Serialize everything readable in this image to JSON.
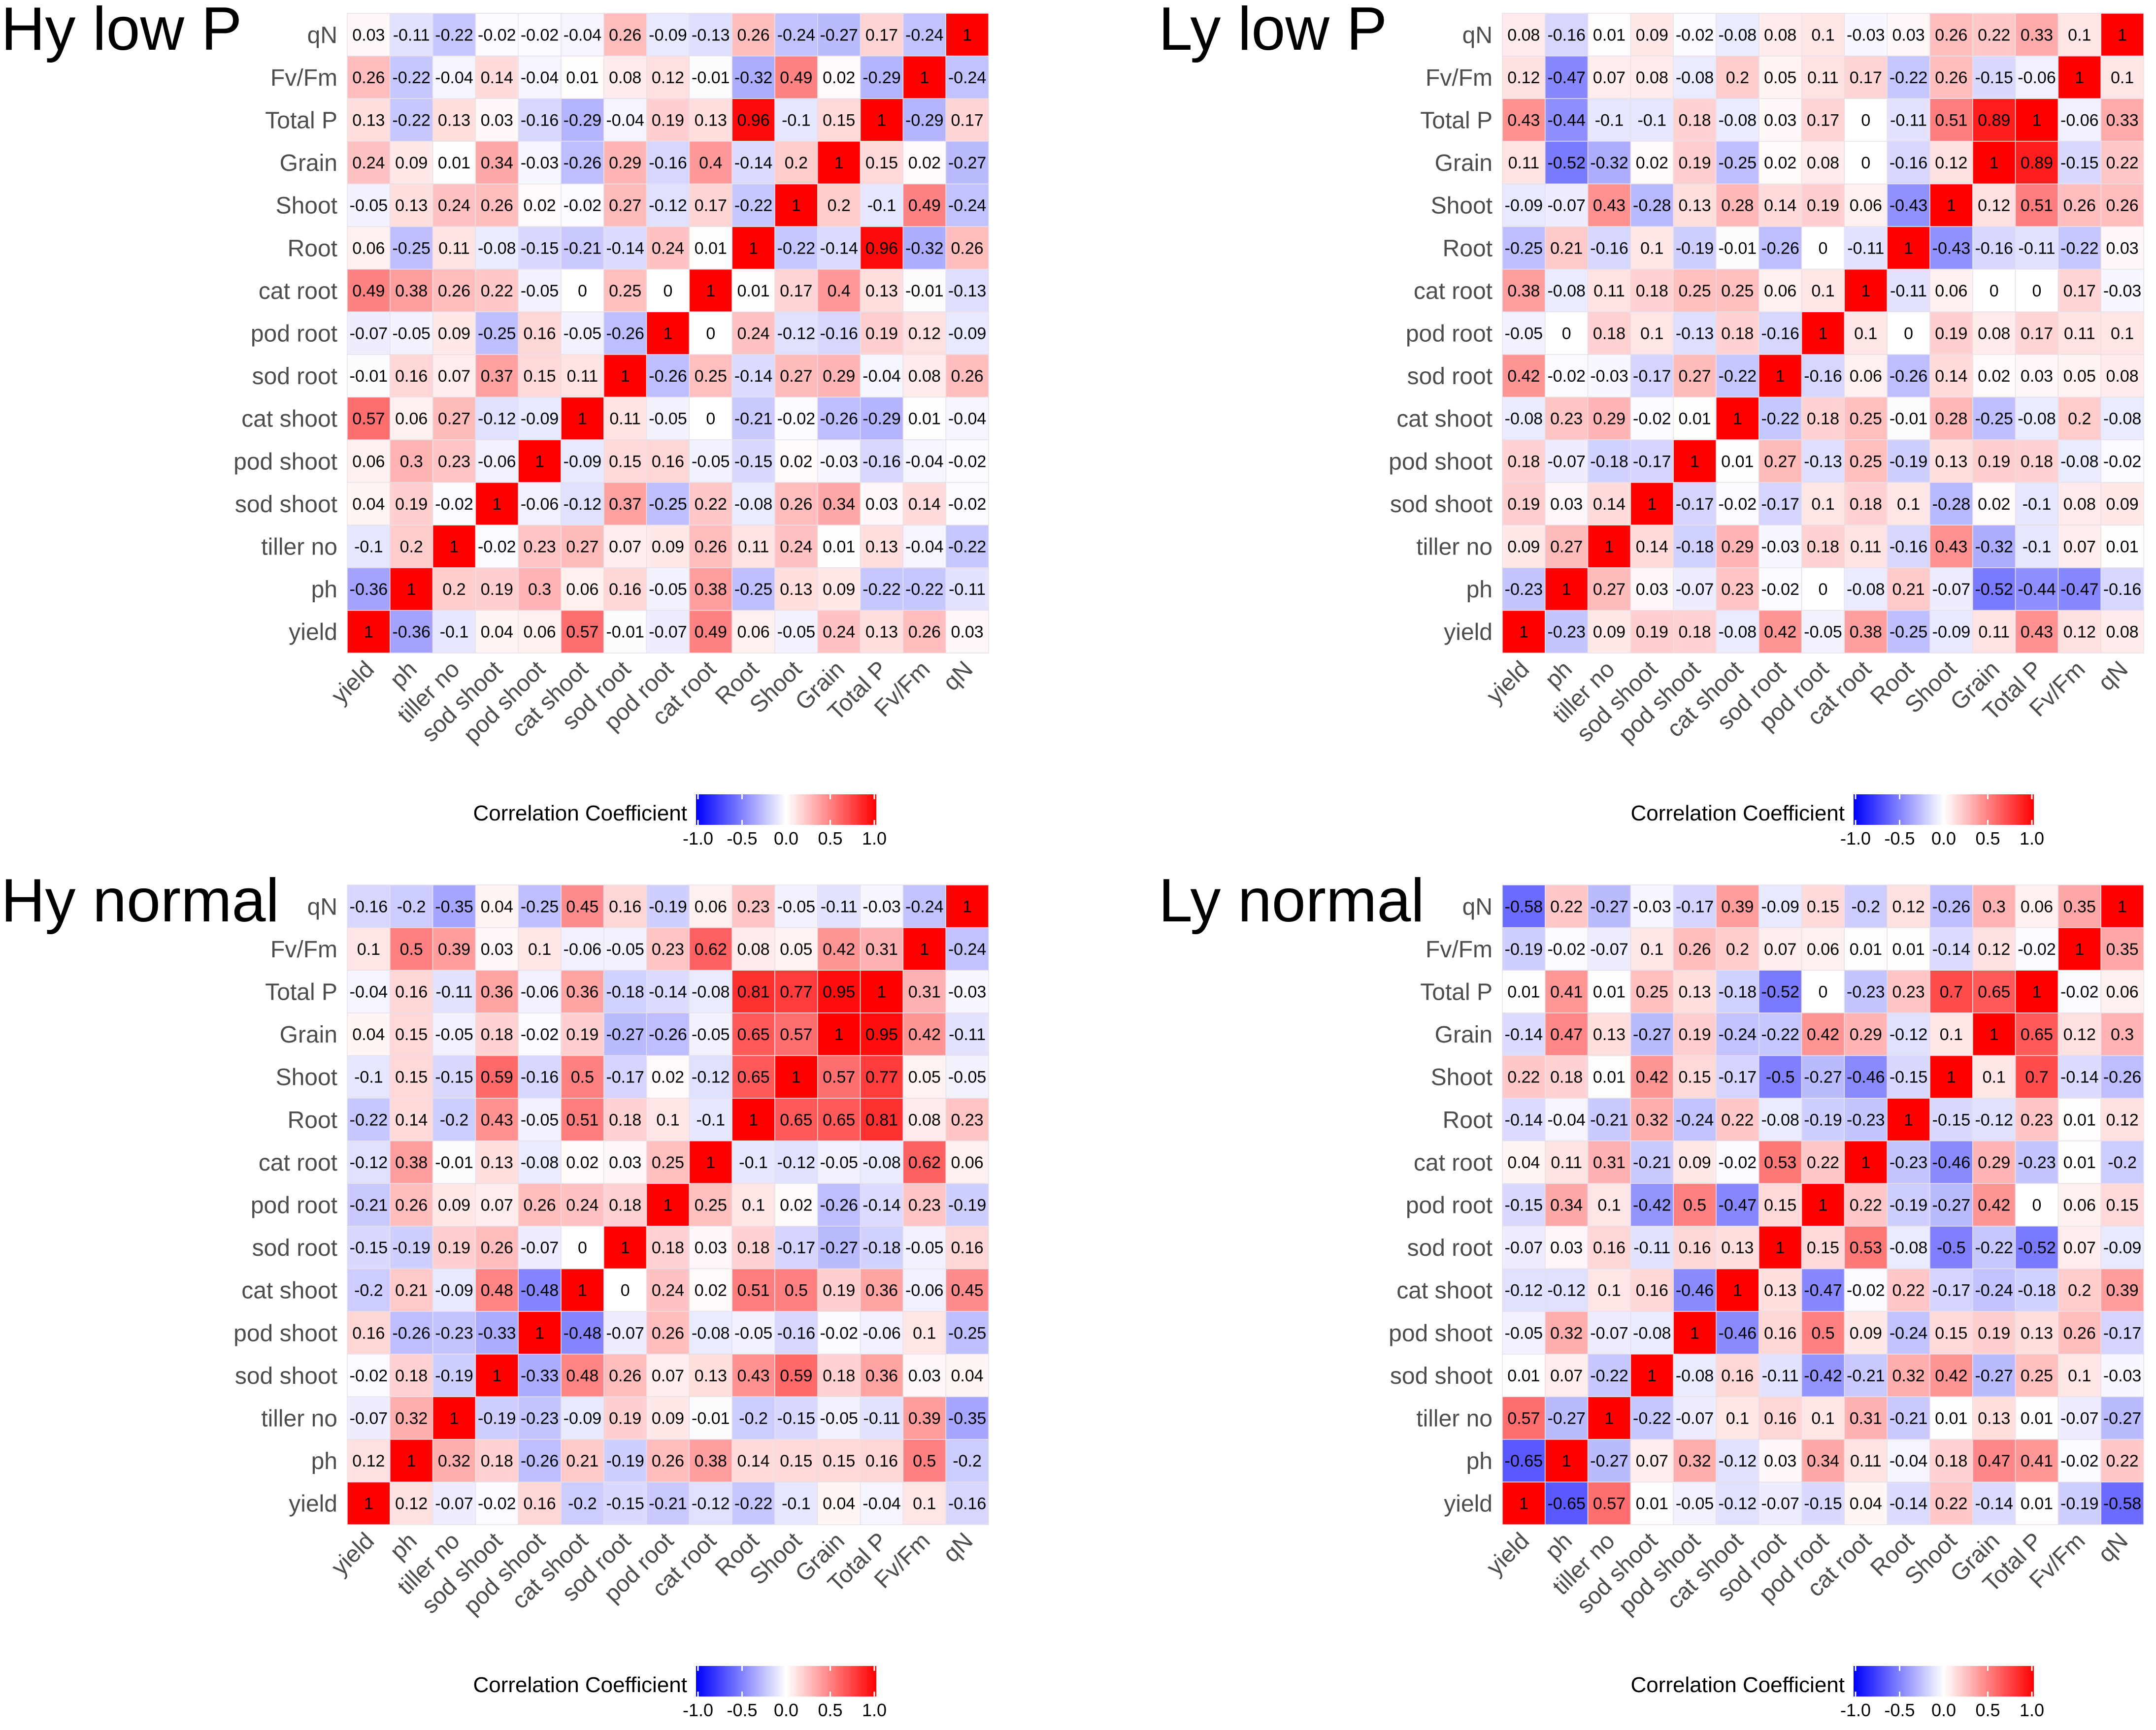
{
  "figure": {
    "variables": [
      "yield",
      "ph",
      "tiller no",
      "sod shoot",
      "pod shoot",
      "cat shoot",
      "sod root",
      "pod root",
      "cat root",
      "Root",
      "Shoot",
      "Grain",
      "Total P",
      "Fv/Fm",
      "qN"
    ],
    "colors": {
      "low": "#0000ff",
      "mid": "#ffffff",
      "high": "#ff0000",
      "grid": "#e8e0e8"
    }
  },
  "chart_data": [
    {
      "type": "heatmap",
      "title": "Hy low P",
      "legend": {
        "title": "Correlation Coefficient",
        "ticks": [
          "-1.0",
          "-0.5",
          "0.0",
          "0.5",
          "1.0"
        ],
        "range": [
          -1,
          1
        ]
      },
      "matrix": [
        [
          1,
          -0.36,
          -0.1,
          0.04,
          0.06,
          0.57,
          -0.01,
          -0.07,
          0.49,
          0.06,
          -0.05,
          0.24,
          0.13,
          0.26,
          0.03
        ],
        [
          -0.36,
          1,
          0.2,
          0.19,
          0.3,
          0.06,
          0.16,
          -0.05,
          0.38,
          -0.25,
          0.13,
          0.09,
          -0.22,
          -0.22,
          -0.11
        ],
        [
          -0.1,
          0.2,
          1,
          -0.02,
          0.23,
          0.27,
          0.07,
          0.09,
          0.26,
          0.11,
          0.24,
          0.01,
          0.13,
          -0.04,
          -0.22
        ],
        [
          0.04,
          0.19,
          -0.02,
          1,
          -0.06,
          -0.12,
          0.37,
          -0.25,
          0.22,
          -0.08,
          0.26,
          0.34,
          0.03,
          0.14,
          -0.02
        ],
        [
          0.06,
          0.3,
          0.23,
          -0.06,
          1,
          -0.09,
          0.15,
          0.16,
          -0.05,
          -0.15,
          0.02,
          -0.03,
          -0.16,
          -0.04,
          -0.02
        ],
        [
          0.57,
          0.06,
          0.27,
          -0.12,
          -0.09,
          1,
          0.11,
          -0.05,
          0,
          -0.21,
          -0.02,
          -0.26,
          -0.29,
          0.01,
          -0.04
        ],
        [
          -0.01,
          0.16,
          0.07,
          0.37,
          0.15,
          0.11,
          1,
          -0.26,
          0.25,
          -0.14,
          0.27,
          0.29,
          -0.04,
          0.08,
          0.26
        ],
        [
          -0.07,
          -0.05,
          0.09,
          -0.25,
          0.16,
          -0.05,
          -0.26,
          1,
          0,
          0.24,
          -0.12,
          -0.16,
          0.19,
          0.12,
          -0.09
        ],
        [
          0.49,
          0.38,
          0.26,
          0.22,
          -0.05,
          0,
          0.25,
          0,
          1,
          0.01,
          0.17,
          0.4,
          0.13,
          -0.01,
          -0.13
        ],
        [
          0.06,
          -0.25,
          0.11,
          -0.08,
          -0.15,
          -0.21,
          -0.14,
          0.24,
          0.01,
          1,
          -0.22,
          -0.14,
          0.96,
          -0.32,
          0.26
        ],
        [
          -0.05,
          0.13,
          0.24,
          0.26,
          0.02,
          -0.02,
          0.27,
          -0.12,
          0.17,
          -0.22,
          1,
          0.2,
          -0.1,
          0.49,
          -0.24
        ],
        [
          0.24,
          0.09,
          0.01,
          0.34,
          -0.03,
          -0.26,
          0.29,
          -0.16,
          0.4,
          -0.14,
          0.2,
          1,
          0.15,
          0.02,
          -0.27
        ],
        [
          0.13,
          -0.22,
          0.13,
          0.03,
          -0.16,
          -0.29,
          -0.04,
          0.19,
          0.13,
          0.96,
          -0.1,
          0.15,
          1,
          -0.29,
          0.17
        ],
        [
          0.26,
          -0.22,
          -0.04,
          0.14,
          -0.04,
          0.01,
          0.08,
          0.12,
          -0.01,
          -0.32,
          0.49,
          0.02,
          -0.29,
          1,
          -0.24
        ],
        [
          0.03,
          -0.11,
          -0.22,
          -0.02,
          -0.02,
          -0.04,
          0.26,
          -0.09,
          -0.13,
          0.26,
          -0.24,
          -0.27,
          0.17,
          -0.24,
          1
        ]
      ]
    },
    {
      "type": "heatmap",
      "title": "Ly low P",
      "legend": {
        "title": "Correlation Coefficient",
        "ticks": [
          "-1.0",
          "-0.5",
          "0.0",
          "0.5",
          "1.0"
        ],
        "range": [
          -1,
          1
        ]
      },
      "matrix": [
        [
          1,
          -0.23,
          0.09,
          0.19,
          0.18,
          -0.08,
          0.42,
          -0.05,
          0.38,
          -0.25,
          -0.09,
          0.11,
          0.43,
          0.12,
          0.08
        ],
        [
          -0.23,
          1,
          0.27,
          0.03,
          -0.07,
          0.23,
          -0.02,
          0,
          -0.08,
          0.21,
          -0.07,
          -0.52,
          -0.44,
          -0.47,
          -0.16
        ],
        [
          0.09,
          0.27,
          1,
          0.14,
          -0.18,
          0.29,
          -0.03,
          0.18,
          0.11,
          -0.16,
          0.43,
          -0.32,
          -0.1,
          0.07,
          0.01
        ],
        [
          0.19,
          0.03,
          0.14,
          1,
          -0.17,
          -0.02,
          -0.17,
          0.1,
          0.18,
          0.1,
          -0.28,
          0.02,
          -0.1,
          0.08,
          0.09
        ],
        [
          0.18,
          -0.07,
          -0.18,
          -0.17,
          1,
          0.01,
          0.27,
          -0.13,
          0.25,
          -0.19,
          0.13,
          0.19,
          0.18,
          -0.08,
          -0.02
        ],
        [
          -0.08,
          0.23,
          0.29,
          -0.02,
          0.01,
          1,
          -0.22,
          0.18,
          0.25,
          -0.01,
          0.28,
          -0.25,
          -0.08,
          0.2,
          -0.08
        ],
        [
          0.42,
          -0.02,
          -0.03,
          -0.17,
          0.27,
          -0.22,
          1,
          -0.16,
          0.06,
          -0.26,
          0.14,
          0.02,
          0.03,
          0.05,
          0.08
        ],
        [
          -0.05,
          0,
          0.18,
          0.1,
          -0.13,
          0.18,
          -0.16,
          1,
          0.1,
          0,
          0.19,
          0.08,
          0.17,
          0.11,
          0.1
        ],
        [
          0.38,
          -0.08,
          0.11,
          0.18,
          0.25,
          0.25,
          0.06,
          0.1,
          1,
          -0.11,
          0.06,
          0,
          0,
          0.17,
          -0.03
        ],
        [
          -0.25,
          0.21,
          -0.16,
          0.1,
          -0.19,
          -0.01,
          -0.26,
          0,
          -0.11,
          1,
          -0.43,
          -0.16,
          -0.11,
          -0.22,
          0.03
        ],
        [
          -0.09,
          -0.07,
          0.43,
          -0.28,
          0.13,
          0.28,
          0.14,
          0.19,
          0.06,
          -0.43,
          1,
          0.12,
          0.51,
          0.26,
          0.26
        ],
        [
          0.11,
          -0.52,
          -0.32,
          0.02,
          0.19,
          -0.25,
          0.02,
          0.08,
          0,
          -0.16,
          0.12,
          1,
          0.89,
          -0.15,
          0.22
        ],
        [
          0.43,
          -0.44,
          -0.1,
          -0.1,
          0.18,
          -0.08,
          0.03,
          0.17,
          0,
          -0.11,
          0.51,
          0.89,
          1,
          -0.06,
          0.33
        ],
        [
          0.12,
          -0.47,
          0.07,
          0.08,
          -0.08,
          0.2,
          0.05,
          0.11,
          0.17,
          -0.22,
          0.26,
          -0.15,
          -0.06,
          1,
          0.1
        ],
        [
          0.08,
          -0.16,
          0.01,
          0.09,
          -0.02,
          -0.08,
          0.08,
          0.1,
          -0.03,
          0.03,
          0.26,
          0.22,
          0.33,
          0.1,
          1
        ]
      ]
    },
    {
      "type": "heatmap",
      "title": "Hy normal",
      "legend": {
        "title": "Correlation Coefficient",
        "ticks": [
          "-1.0",
          "-0.5",
          "0.0",
          "0.5",
          "1.0"
        ],
        "range": [
          -1,
          1
        ]
      },
      "matrix": [
        [
          1,
          0.12,
          -0.07,
          -0.02,
          0.16,
          -0.2,
          -0.15,
          -0.21,
          -0.12,
          -0.22,
          -0.1,
          0.04,
          -0.04,
          0.1,
          -0.16
        ],
        [
          0.12,
          1,
          0.32,
          0.18,
          -0.26,
          0.21,
          -0.19,
          0.26,
          0.38,
          0.14,
          0.15,
          0.15,
          0.16,
          0.5,
          -0.2
        ],
        [
          -0.07,
          0.32,
          1,
          -0.19,
          -0.23,
          -0.09,
          0.19,
          0.09,
          -0.01,
          -0.2,
          -0.15,
          -0.05,
          -0.11,
          0.39,
          -0.35
        ],
        [
          -0.02,
          0.18,
          -0.19,
          1,
          -0.33,
          0.48,
          0.26,
          0.07,
          0.13,
          0.43,
          0.59,
          0.18,
          0.36,
          0.03,
          0.04
        ],
        [
          0.16,
          -0.26,
          -0.23,
          -0.33,
          1,
          -0.48,
          -0.07,
          0.26,
          -0.08,
          -0.05,
          -0.16,
          -0.02,
          -0.06,
          0.1,
          -0.25
        ],
        [
          -0.2,
          0.21,
          -0.09,
          0.48,
          -0.48,
          1,
          0,
          0.24,
          0.02,
          0.51,
          0.5,
          0.19,
          0.36,
          -0.06,
          0.45
        ],
        [
          -0.15,
          -0.19,
          0.19,
          0.26,
          -0.07,
          0,
          1,
          0.18,
          0.03,
          0.18,
          -0.17,
          -0.27,
          -0.18,
          -0.05,
          0.16
        ],
        [
          -0.21,
          0.26,
          0.09,
          0.07,
          0.26,
          0.24,
          0.18,
          1,
          0.25,
          0.1,
          0.02,
          -0.26,
          -0.14,
          0.23,
          -0.19
        ],
        [
          -0.12,
          0.38,
          -0.01,
          0.13,
          -0.08,
          0.02,
          0.03,
          0.25,
          1,
          -0.1,
          -0.12,
          -0.05,
          -0.08,
          0.62,
          0.06
        ],
        [
          -0.22,
          0.14,
          -0.2,
          0.43,
          -0.05,
          0.51,
          0.18,
          0.1,
          -0.1,
          1,
          0.65,
          0.65,
          0.81,
          0.08,
          0.23
        ],
        [
          -0.1,
          0.15,
          -0.15,
          0.59,
          -0.16,
          0.5,
          -0.17,
          0.02,
          -0.12,
          0.65,
          1,
          0.57,
          0.77,
          0.05,
          -0.05
        ],
        [
          0.04,
          0.15,
          -0.05,
          0.18,
          -0.02,
          0.19,
          -0.27,
          -0.26,
          -0.05,
          0.65,
          0.57,
          1,
          0.95,
          0.42,
          -0.11
        ],
        [
          -0.04,
          0.16,
          -0.11,
          0.36,
          -0.06,
          0.36,
          -0.18,
          -0.14,
          -0.08,
          0.81,
          0.77,
          0.95,
          1,
          0.31,
          -0.03
        ],
        [
          0.1,
          0.5,
          0.39,
          0.03,
          0.1,
          -0.06,
          -0.05,
          0.23,
          0.62,
          0.08,
          0.05,
          0.42,
          0.31,
          1,
          -0.24
        ],
        [
          -0.16,
          -0.2,
          -0.35,
          0.04,
          -0.25,
          0.45,
          0.16,
          -0.19,
          0.06,
          0.23,
          -0.05,
          -0.11,
          -0.03,
          -0.24,
          1
        ]
      ]
    },
    {
      "type": "heatmap",
      "title": "Ly normal",
      "legend": {
        "title": "Correlation Coefficient",
        "ticks": [
          "-1.0",
          "-0.5",
          "0.0",
          "0.5",
          "1.0"
        ],
        "range": [
          -1,
          1
        ]
      },
      "matrix": [
        [
          1,
          -0.65,
          0.57,
          0.01,
          -0.05,
          -0.12,
          -0.07,
          -0.15,
          0.04,
          -0.14,
          0.22,
          -0.14,
          0.01,
          -0.19,
          -0.58
        ],
        [
          -0.65,
          1,
          -0.27,
          0.07,
          0.32,
          -0.12,
          0.03,
          0.34,
          0.11,
          -0.04,
          0.18,
          0.47,
          0.41,
          -0.02,
          0.22
        ],
        [
          0.57,
          -0.27,
          1,
          -0.22,
          -0.07,
          0.1,
          0.16,
          0.1,
          0.31,
          -0.21,
          0.01,
          0.13,
          0.01,
          -0.07,
          -0.27
        ],
        [
          0.01,
          0.07,
          -0.22,
          1,
          -0.08,
          0.16,
          -0.11,
          -0.42,
          -0.21,
          0.32,
          0.42,
          -0.27,
          0.25,
          0.1,
          -0.03
        ],
        [
          -0.05,
          0.32,
          -0.07,
          -0.08,
          1,
          -0.46,
          0.16,
          0.5,
          0.09,
          -0.24,
          0.15,
          0.19,
          0.13,
          0.26,
          -0.17
        ],
        [
          -0.12,
          -0.12,
          0.1,
          0.16,
          -0.46,
          1,
          0.13,
          -0.47,
          -0.02,
          0.22,
          -0.17,
          -0.24,
          -0.18,
          0.2,
          0.39
        ],
        [
          -0.07,
          0.03,
          0.16,
          -0.11,
          0.16,
          0.13,
          1,
          0.15,
          0.53,
          -0.08,
          -0.5,
          -0.22,
          -0.52,
          0.07,
          -0.09
        ],
        [
          -0.15,
          0.34,
          0.1,
          -0.42,
          0.5,
          -0.47,
          0.15,
          1,
          0.22,
          -0.19,
          -0.27,
          0.42,
          0,
          0.06,
          0.15
        ],
        [
          0.04,
          0.11,
          0.31,
          -0.21,
          0.09,
          -0.02,
          0.53,
          0.22,
          1,
          -0.23,
          -0.46,
          0.29,
          -0.23,
          0.01,
          -0.2
        ],
        [
          -0.14,
          -0.04,
          -0.21,
          0.32,
          -0.24,
          0.22,
          -0.08,
          -0.19,
          -0.23,
          1,
          -0.15,
          -0.12,
          0.23,
          0.01,
          0.12
        ],
        [
          0.22,
          0.18,
          0.01,
          0.42,
          0.15,
          -0.17,
          -0.5,
          -0.27,
          -0.46,
          -0.15,
          1,
          0.1,
          0.7,
          -0.14,
          -0.26
        ],
        [
          -0.14,
          0.47,
          0.13,
          -0.27,
          0.19,
          -0.24,
          -0.22,
          0.42,
          0.29,
          -0.12,
          0.1,
          1,
          0.65,
          0.12,
          0.3
        ],
        [
          0.01,
          0.41,
          0.01,
          0.25,
          0.13,
          -0.18,
          -0.52,
          0,
          -0.23,
          0.23,
          0.7,
          0.65,
          1,
          -0.02,
          0.06
        ],
        [
          -0.19,
          -0.02,
          -0.07,
          0.1,
          0.26,
          0.2,
          0.07,
          0.06,
          0.01,
          0.01,
          -0.14,
          0.12,
          -0.02,
          1,
          0.35
        ],
        [
          -0.58,
          0.22,
          -0.27,
          -0.03,
          -0.17,
          0.39,
          -0.09,
          0.15,
          -0.2,
          0.12,
          -0.26,
          0.3,
          0.06,
          0.35,
          1
        ]
      ]
    }
  ]
}
